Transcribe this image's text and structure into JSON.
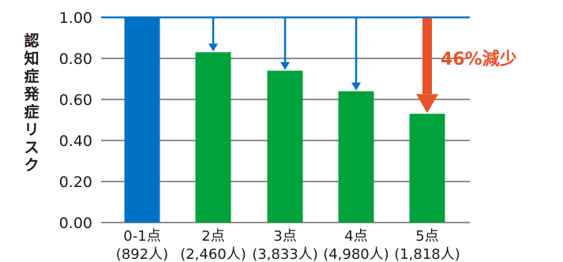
{
  "chart_data": {
    "type": "bar",
    "title": "",
    "xlabel": "",
    "ylabel": "認知症発症リスク",
    "ylim": [
      0,
      1.0
    ],
    "yticks": [
      "1.00",
      "0.80",
      "0.60",
      "0.40",
      "0.20",
      "0.00"
    ],
    "grid": true,
    "categories": [
      "0-1点",
      "2点",
      "3点",
      "4点",
      "5点"
    ],
    "category_sublabels": [
      "(892人)",
      "(2,460人)",
      "(3,833人)",
      "(4,980人)",
      "(1,818人)"
    ],
    "values": [
      1.0,
      0.83,
      0.74,
      0.64,
      0.53
    ],
    "bar_colors": [
      "#0072c6",
      "#00a23c",
      "#00a23c",
      "#00a23c",
      "#00a23c"
    ],
    "reference_line": {
      "value": 1.0,
      "color": "#0072c6"
    },
    "arrows": [
      {
        "category": "2点",
        "color": "#0072c6"
      },
      {
        "category": "3点",
        "color": "#0072c6"
      },
      {
        "category": "4点",
        "color": "#0072c6"
      },
      {
        "category": "5点",
        "color": "#e8532a"
      }
    ],
    "annotation": {
      "text": "46%減少",
      "color": "#e8532a"
    }
  }
}
